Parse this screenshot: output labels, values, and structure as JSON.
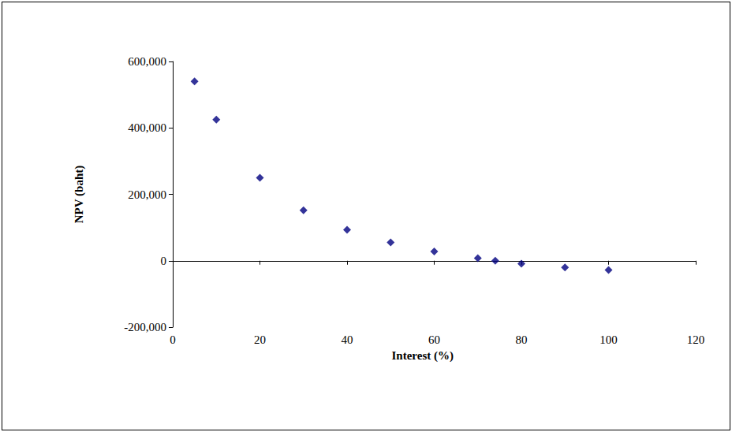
{
  "chart_data": {
    "type": "scatter",
    "x_label": "Interest (%)",
    "y_label": "NPV (baht)",
    "x": [
      5,
      10,
      20,
      30,
      40,
      50,
      60,
      70,
      74,
      80,
      90,
      100
    ],
    "values": [
      540000,
      425000,
      250000,
      152000,
      93000,
      55000,
      28000,
      8000,
      0,
      -9000,
      -20000,
      -28000
    ],
    "color": "#000080",
    "marker": "diamond",
    "xlim": [
      0,
      120
    ],
    "xticks": [
      0,
      20,
      40,
      60,
      80,
      100,
      120
    ],
    "ylim": [
      -200000,
      600000
    ],
    "yticks": [
      {
        "value": -200000,
        "label": "-200,000"
      },
      0,
      {
        "value": 200000,
        "label": "200,000"
      },
      {
        "value": 400000,
        "label": "400,000"
      },
      {
        "value": 600000,
        "label": "600,000"
      }
    ],
    "grid": false
  }
}
